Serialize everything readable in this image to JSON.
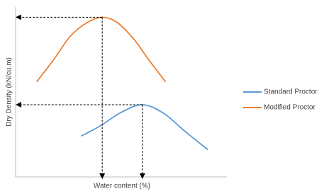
{
  "chart_data": {
    "type": "line",
    "xlabel": "Water content (%)",
    "ylabel": "Dry Density (kN/cu.m)",
    "xlim": [
      0,
      100
    ],
    "ylim": [
      0,
      100
    ],
    "legend": "right",
    "series": [
      {
        "name": "Standard Proctor",
        "color": "#5b9bd5",
        "x": [
          31,
          40,
          50,
          60,
          70,
          80,
          91
        ],
        "values": [
          24,
          30,
          38,
          42.5,
          37.5,
          27,
          16
        ]
      },
      {
        "name": "Modified Proctor",
        "color": "#ed7d31",
        "x": [
          10,
          18,
          26,
          34,
          41,
          48,
          56,
          63,
          71
        ],
        "values": [
          56,
          69,
          83,
          91,
          94,
          91,
          81,
          69,
          56
        ]
      }
    ]
  }
}
